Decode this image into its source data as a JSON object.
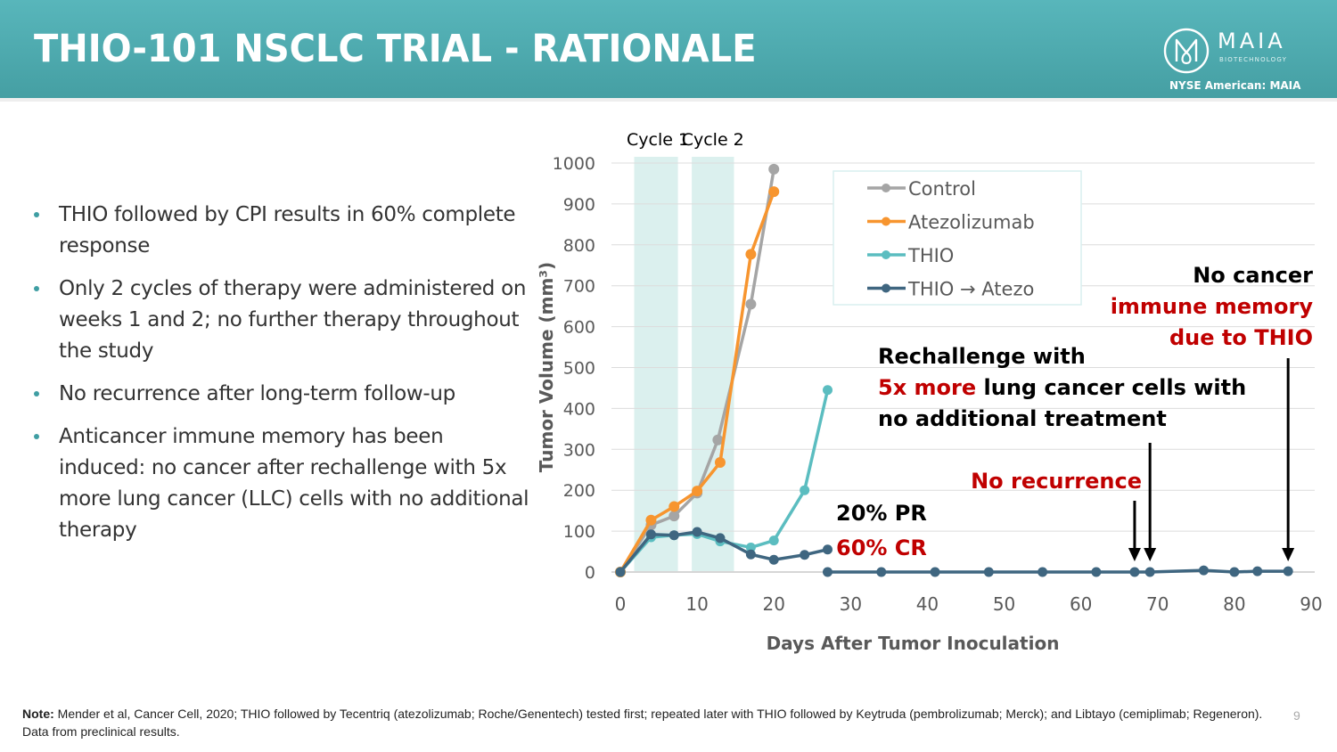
{
  "header": {
    "title": "THIO-101 NSCLC TRIAL - RATIONALE",
    "logo_word": "MAIA",
    "logo_sub": "BIOTECHNOLOGY",
    "exchange": "NYSE American: MAIA"
  },
  "bullets": [
    "THIO followed by CPI results in 60% complete response",
    "Only 2 cycles of therapy were administered on weeks 1 and 2; no further therapy throughout the study",
    "No recurrence after long-term follow-up",
    "Anticancer immune memory has been induced: no cancer after rechallenge with 5x more lung cancer (LLC) cells with no additional therapy"
  ],
  "note": {
    "label": "Note:",
    "text": "Mender et al, Cancer Cell, 2020; THIO followed by Tecentriq (atezolizumab; Roche/Genentech) tested first; repeated later with THIO followed by Keytruda (pembrolizumab; Merck); and Libtayo (cemiplimab; Regeneron). Data from preclinical results."
  },
  "page_number": "9",
  "colors": {
    "header": "#4aa9ad",
    "control": "#a5a5a5",
    "atezolizumab": "#f7952f",
    "thio": "#5bbdc0",
    "thio_atezo": "#3f6680",
    "cycle_band": "#dbf0ee",
    "red": "#c00000"
  },
  "chart_data": {
    "type": "line",
    "title": "",
    "xlabel": "Days After Tumor Inoculation",
    "ylabel": "Tumor Volume (mm³)",
    "xlim": [
      0,
      90
    ],
    "ylim": [
      0,
      1000
    ],
    "xticks": [
      "0",
      "10",
      "20",
      "30",
      "40",
      "50",
      "60",
      "70",
      "80",
      "90"
    ],
    "yticks": [
      "0",
      "100",
      "200",
      "300",
      "400",
      "500",
      "600",
      "700",
      "800",
      "900",
      "1000"
    ],
    "grid": true,
    "legend_position": "top-center",
    "cycle_bands": [
      {
        "label": "Cycle 1",
        "x_start": 1.8,
        "x_end": 7.5
      },
      {
        "label": "Cycle 2",
        "x_start": 9.3,
        "x_end": 14.8
      }
    ],
    "series": [
      {
        "name": "Control",
        "color_key": "control",
        "points": [
          [
            0,
            0
          ],
          [
            4,
            115
          ],
          [
            7,
            137
          ],
          [
            10,
            193
          ],
          [
            12.7,
            323
          ],
          [
            17,
            655
          ],
          [
            20,
            985
          ]
        ]
      },
      {
        "name": "Atezolizumab",
        "color_key": "atezolizumab",
        "points": [
          [
            0,
            0
          ],
          [
            4,
            127
          ],
          [
            7,
            160
          ],
          [
            10,
            198
          ],
          [
            13,
            268
          ],
          [
            17,
            777
          ],
          [
            20,
            930
          ]
        ]
      },
      {
        "name": "THIO",
        "color_key": "thio",
        "points": [
          [
            0,
            0
          ],
          [
            4,
            85
          ],
          [
            7,
            90
          ],
          [
            10,
            93
          ],
          [
            13,
            75
          ],
          [
            17,
            60
          ],
          [
            20,
            77
          ],
          [
            24,
            200
          ],
          [
            27,
            445
          ]
        ]
      },
      {
        "name": "THIO → Atezo",
        "color_key": "thio_atezo",
        "points": [
          [
            0,
            0
          ],
          [
            4,
            92
          ],
          [
            7,
            90
          ],
          [
            10,
            98
          ],
          [
            13,
            83
          ],
          [
            17,
            43
          ],
          [
            20,
            30
          ],
          [
            24,
            42
          ],
          [
            27,
            55
          ]
        ]
      },
      {
        "name": "THIO → Atezo (CR)",
        "color_key": "thio_atezo",
        "legend": false,
        "points": [
          [
            27,
            0
          ],
          [
            34,
            0
          ],
          [
            41,
            0
          ],
          [
            48,
            0
          ],
          [
            55,
            0
          ],
          [
            62,
            0
          ],
          [
            67,
            0
          ],
          [
            69,
            0
          ],
          [
            76,
            4
          ],
          [
            80,
            0
          ],
          [
            83,
            2
          ],
          [
            87,
            2
          ]
        ]
      }
    ],
    "annotations": [
      {
        "text": "20% PR",
        "color_key": "black"
      },
      {
        "text": "60% CR",
        "color_key": "red"
      },
      {
        "text": "No recurrence",
        "color_key": "red"
      },
      {
        "text_parts": [
          {
            "text": "Rechallenge with",
            "color_key": "black",
            "line": 0
          },
          {
            "text": "5x more",
            "color_key": "red",
            "line": 1
          },
          {
            "text": " lung cancer cells with",
            "color_key": "black",
            "line": 1
          },
          {
            "text": "no additional treatment",
            "color_key": "black",
            "line": 2
          }
        ]
      },
      {
        "text_parts": [
          {
            "text": "No cancer",
            "color_key": "black",
            "line": 0
          },
          {
            "text": "immune memory",
            "color_key": "red",
            "line": 1
          },
          {
            "text": "due to THIO",
            "color_key": "red",
            "line": 2
          }
        ]
      }
    ],
    "arrows_at_x": [
      67,
      69,
      87
    ]
  }
}
